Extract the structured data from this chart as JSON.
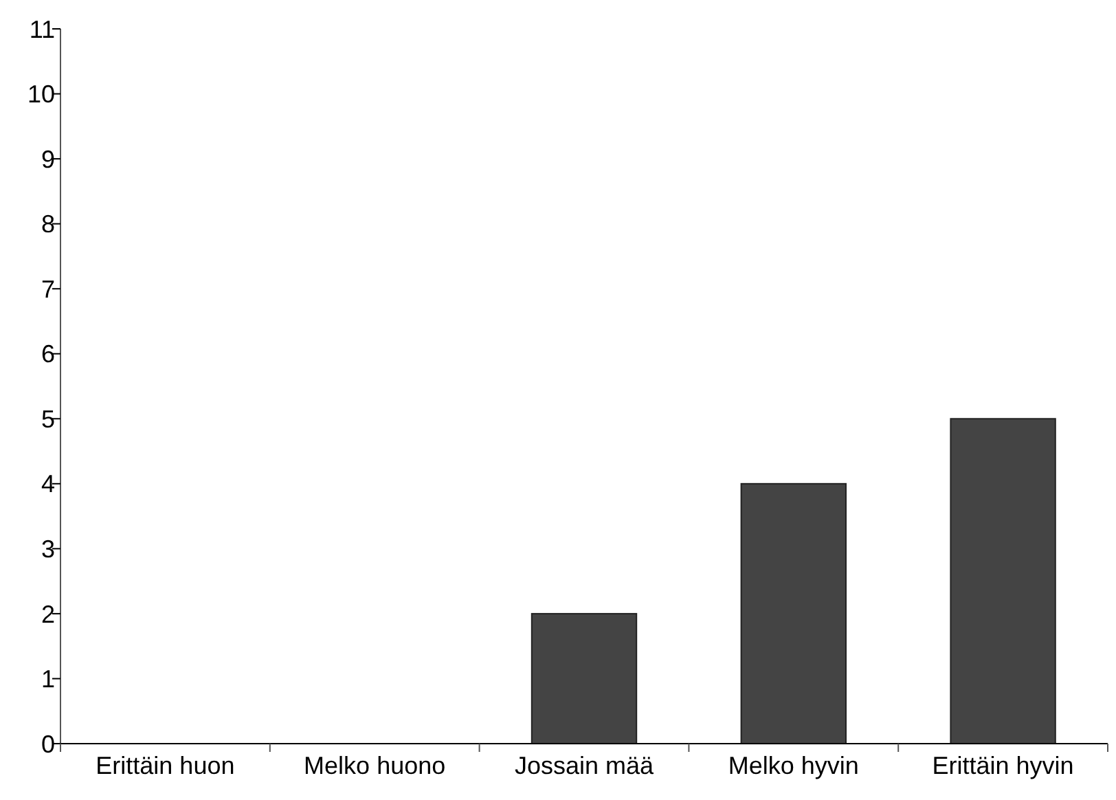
{
  "chart_data": {
    "type": "bar",
    "categories": [
      "Erittäin huon",
      "Melko huono",
      "Jossain mää",
      "Melko hyvin",
      "Erittäin hyvin"
    ],
    "values": [
      0,
      0,
      2,
      4,
      5
    ],
    "color": "#444444",
    "ylim": [
      0,
      11
    ],
    "yticks": [
      0,
      1,
      2,
      3,
      4,
      5,
      6,
      7,
      8,
      9,
      10,
      11
    ],
    "grid": false
  }
}
